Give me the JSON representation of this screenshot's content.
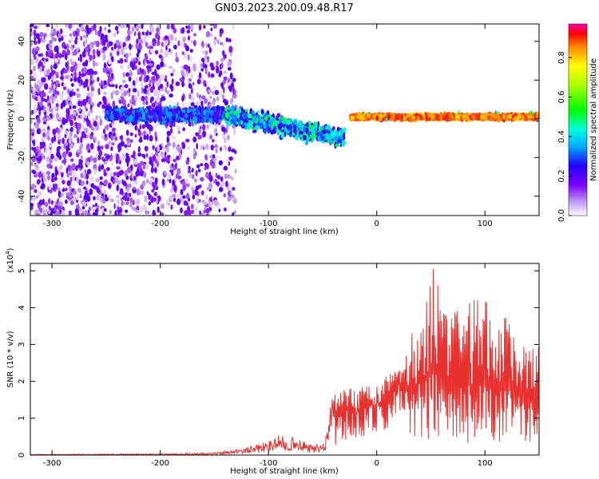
{
  "title": "GN03.2023.200.09.48.R17",
  "chart_data": [
    {
      "type": "heatmap",
      "xlabel": "Height of straight line (km)",
      "ylabel": "Frequency (Hz)",
      "xlim": [
        -320,
        150
      ],
      "ylim": [
        -50,
        49
      ],
      "xticks": [
        -300,
        -200,
        -100,
        0,
        100
      ],
      "yticks": [
        -40,
        -20,
        0,
        20,
        40
      ],
      "colorbar": {
        "label": "Normalized spectral amplitude",
        "range": [
          0.0,
          0.97
        ],
        "ticks": [
          0.0,
          0.2,
          0.4,
          0.6,
          0.8
        ],
        "tick_labels": [
          "0.0",
          "0.2",
          "0.4",
          "0.6",
          "0.8"
        ]
      },
      "features": [
        {
          "x_range": [
            -320,
            -130
          ],
          "description": "scattered low-amplitude noise across all frequencies",
          "amplitude": 0.2
        },
        {
          "x_range": [
            -250,
            -140
          ],
          "freq_center": 2,
          "freq_spread": 6,
          "amplitude": 0.35
        },
        {
          "x_range": [
            -140,
            -30
          ],
          "freq_center_start": 2,
          "freq_center_end": -10,
          "amplitude": 0.45
        },
        {
          "x_range": [
            -25,
            150
          ],
          "freq_center": 1,
          "freq_spread": 2,
          "amplitude": 0.95
        }
      ]
    },
    {
      "type": "line",
      "xlabel": "Height of straight line (km)",
      "ylabel": "SNR (10 * v/v)",
      "scale_note": "(x10^4)",
      "xlim": [
        -320,
        150
      ],
      "ylim": [
        0,
        5.2
      ],
      "xticks": [
        -300,
        -200,
        -100,
        0,
        100
      ],
      "yticks": [
        0,
        1,
        2,
        3,
        4,
        5
      ],
      "series": [
        {
          "name": "SNR",
          "color": "#e8302f",
          "x": [
            -320,
            -200,
            -150,
            -120,
            -100,
            -90,
            -75,
            -60,
            -48,
            -45,
            -40,
            -30,
            -20,
            -10,
            0,
            10,
            20,
            25,
            30,
            40,
            50,
            60,
            70,
            80,
            90,
            100,
            110,
            120,
            130,
            140,
            150
          ],
          "values": [
            0.01,
            0.02,
            0.04,
            0.12,
            0.22,
            0.35,
            0.28,
            0.15,
            0.2,
            0.55,
            1.1,
            1.25,
            1.15,
            1.3,
            1.4,
            1.5,
            1.9,
            2.0,
            1.8,
            2.0,
            2.3,
            2.1,
            1.9,
            2.0,
            1.8,
            2.0,
            1.7,
            1.8,
            1.6,
            1.5,
            1.6
          ],
          "envelope_min": [
            0,
            0,
            0,
            0,
            0,
            0,
            0,
            0,
            0,
            0.1,
            0.2,
            0.3,
            0.4,
            0.5,
            0.6,
            0.7,
            1.0,
            0.9,
            0.6,
            0.4,
            0.3,
            0.3,
            0.3,
            0.2,
            0.3,
            0.4,
            0.3,
            0.3,
            0.4,
            0.3,
            0.1
          ],
          "envelope_max": [
            0.02,
            0.04,
            0.06,
            0.2,
            0.35,
            0.5,
            0.4,
            0.25,
            0.3,
            1.0,
            1.6,
            1.8,
            1.8,
            1.9,
            2.1,
            2.2,
            2.3,
            2.4,
            3.3,
            3.8,
            5.2,
            4.6,
            4.2,
            4.0,
            4.3,
            4.3,
            3.6,
            3.8,
            3.3,
            2.9,
            3.0
          ]
        }
      ]
    }
  ]
}
